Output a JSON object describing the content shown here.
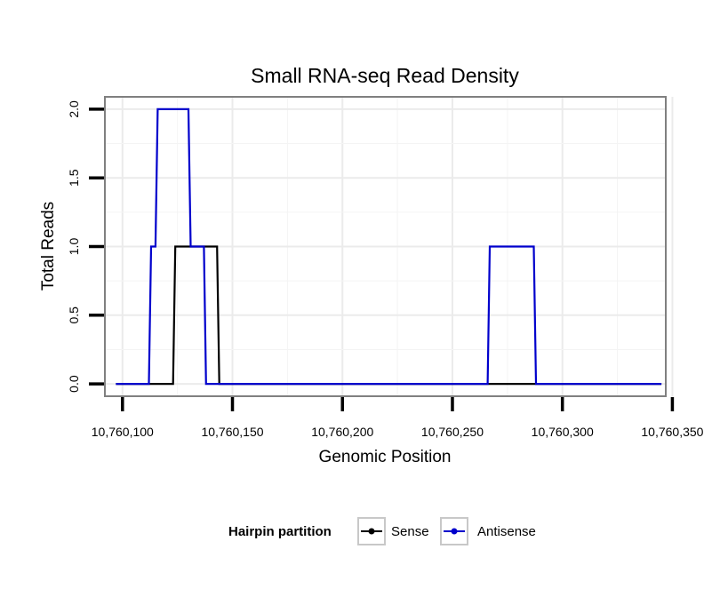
{
  "chart_data": {
    "type": "line",
    "title": "Small RNA-seq Read Density",
    "xlabel": "Genomic Position",
    "ylabel": "Total Reads",
    "xlim": [
      10760092,
      10760347
    ],
    "ylim": [
      -0.09,
      2.09
    ],
    "x_ticks": [
      10760100,
      10760150,
      10760200,
      10760250,
      10760300,
      10760350
    ],
    "x_tick_labels": [
      "10,760,100",
      "10,760,150",
      "10,760,200",
      "10,760,250",
      "10,760,300",
      "10,760,350"
    ],
    "y_ticks": [
      0,
      0.5,
      1,
      1.5,
      2
    ],
    "y_tick_labels": [
      "0.0",
      "0.5",
      "1.0",
      "1.5",
      "2.0"
    ],
    "grid": true,
    "legend": {
      "title": "Hairpin partition",
      "placement": "bottom",
      "entries": [
        "Sense",
        "Antisense"
      ]
    },
    "series": [
      {
        "name": "Sense",
        "color": "#000000",
        "x": [
          10760097,
          10760123,
          10760124,
          10760132,
          10760133,
          10760143,
          10760144,
          10760345
        ],
        "y": [
          0,
          0,
          1,
          1,
          1,
          1,
          0,
          0
        ]
      },
      {
        "name": "Antisense",
        "color": "#0000cc",
        "x": [
          10760097,
          10760112,
          10760113,
          10760115,
          10760116,
          10760130,
          10760131,
          10760137,
          10760138,
          10760266,
          10760267,
          10760287,
          10760288,
          10760345
        ],
        "y": [
          0,
          0,
          1,
          1,
          2,
          2,
          1,
          1,
          0,
          0,
          1,
          1,
          0,
          0
        ]
      }
    ]
  }
}
